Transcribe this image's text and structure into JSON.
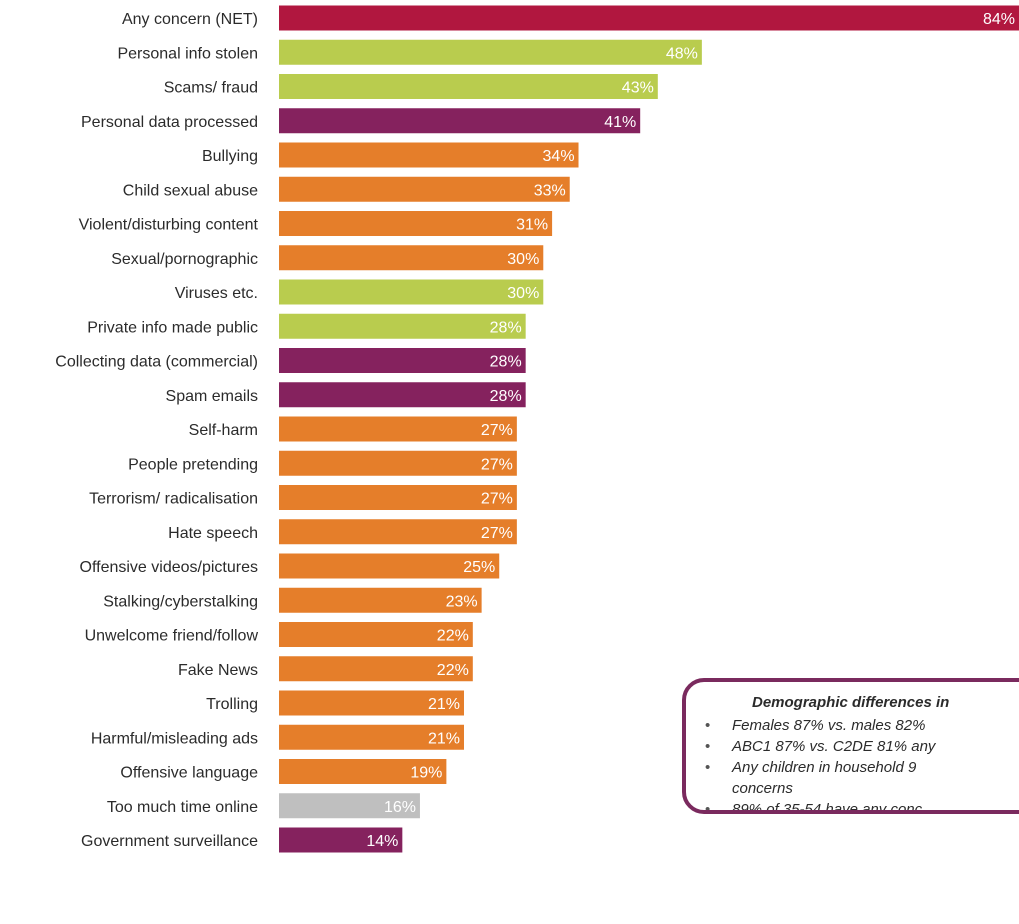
{
  "chart_data": {
    "type": "bar",
    "orientation": "horizontal",
    "categories": [
      "Any concern (NET)",
      "Personal info stolen",
      "Scams/ fraud",
      "Personal data processed",
      "Bullying",
      "Child sexual abuse",
      "Violent/disturbing content",
      "Sexual/pornographic",
      "Viruses etc.",
      "Private info made public",
      "Collecting data (commercial)",
      "Spam emails",
      "Self-harm",
      "People pretending",
      "Terrorism/ radicalisation",
      "Hate speech",
      "Offensive videos/pictures",
      "Stalking/cyberstalking",
      "Unwelcome friend/follow",
      "Fake News",
      "Trolling",
      "Harmful/misleading ads",
      "Offensive language",
      "Too much time online",
      "Government surveillance"
    ],
    "values": [
      84,
      48,
      43,
      41,
      34,
      33,
      31,
      30,
      30,
      28,
      28,
      28,
      27,
      27,
      27,
      27,
      25,
      23,
      22,
      22,
      21,
      21,
      19,
      16,
      14
    ],
    "value_labels": [
      "84%",
      "48%",
      "43%",
      "41%",
      "34%",
      "33%",
      "31%",
      "30%",
      "30%",
      "28%",
      "28%",
      "28%",
      "27%",
      "27%",
      "27%",
      "27%",
      "25%",
      "23%",
      "22%",
      "22%",
      "21%",
      "21%",
      "19%",
      "16%",
      "14%"
    ],
    "bar_colors": [
      "#b1173f",
      "#b9cc4e",
      "#b9cc4e",
      "#85225e",
      "#e57e2a",
      "#e57e2a",
      "#e57e2a",
      "#e57e2a",
      "#b9cc4e",
      "#b9cc4e",
      "#85225e",
      "#85225e",
      "#e57e2a",
      "#e57e2a",
      "#e57e2a",
      "#e57e2a",
      "#e57e2a",
      "#e57e2a",
      "#e57e2a",
      "#e57e2a",
      "#e57e2a",
      "#e57e2a",
      "#e57e2a",
      "#bfbfbf",
      "#85225e"
    ],
    "xlim": [
      0,
      84
    ],
    "grid": false,
    "legend": "none"
  },
  "callout": {
    "title": "Demographic differences in",
    "bullets": [
      "Females 87% vs. males 82%",
      "ABC1 87% vs. C2DE 81% any",
      "Any children in household 9… concerns",
      "89% of 35-54 have any conc…"
    ],
    "bullets_display": [
      "Females 87% vs. males 82%",
      "ABC1 87% vs. C2DE 81% any",
      "Any children in household 9",
      "89% of 35-54 have any conc"
    ],
    "bullet_3_wrap": "concerns",
    "border_color": "#7a2a5e"
  }
}
